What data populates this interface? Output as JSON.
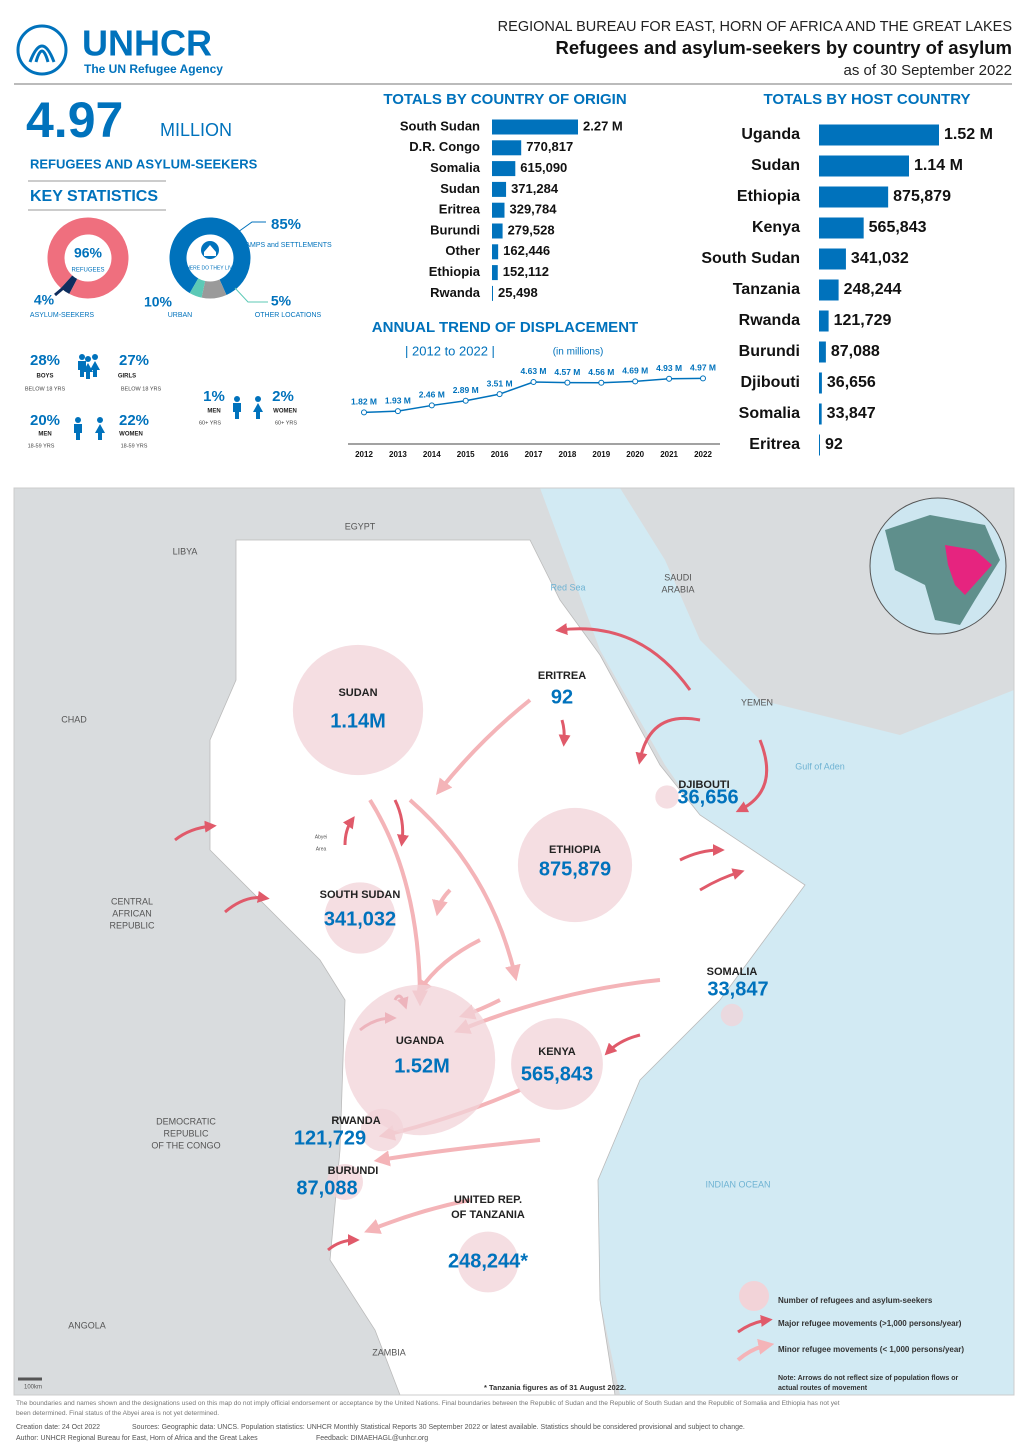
{
  "header": {
    "logo": "UNHCR",
    "logo_tagline": "The UN Refugee Agency",
    "bureau": "REGIONAL BUREAU FOR EAST, HORN OF AFRICA AND THE GREAT LAKES",
    "title": "Refugees and asylum-seekers by country of asylum",
    "date": "as of 30 September 2022"
  },
  "key_statistics": {
    "total": {
      "value": 4.97,
      "unit": "MILLION",
      "caption": "REFUGEES AND ASYLUM-SEEKERS"
    },
    "heading": "KEY STATISTICS",
    "demographics": [
      {
        "value": 28,
        "label": "28%",
        "group": "BOYS",
        "age": "BELOW 18 YRS"
      },
      {
        "value": 27,
        "label": "27%",
        "group": "GIRLS",
        "age": "BELOW 18 YRS"
      },
      {
        "value": 20,
        "label": "20%",
        "group": "MEN",
        "age": "18-59 YRS"
      },
      {
        "value": 22,
        "label": "22%",
        "group": "WOMEN",
        "age": "18-59 YRS"
      },
      {
        "value": 1,
        "label": "1%",
        "group": "MEN",
        "age": "60+ YRS"
      },
      {
        "value": 2,
        "label": "2%",
        "group": "WOMEN",
        "age": "60+ YRS"
      }
    ]
  },
  "chart_data": [
    {
      "type": "pie",
      "categories": [
        "REFUGEES",
        "ASYLUM-SEEKERS"
      ],
      "values": [
        96,
        4
      ],
      "value_labels": [
        "96%",
        "4%"
      ],
      "colors": [
        "#ef6f7e",
        "#0e2d5e"
      ]
    },
    {
      "type": "pie",
      "center_label": "WHERE DO THEY LIVE?",
      "categories": [
        "CAMPS and SETTLEMENTS",
        "URBAN",
        "OTHER LOCATIONS"
      ],
      "values": [
        85,
        10,
        5
      ],
      "value_labels": [
        "85%",
        "10%",
        "5%"
      ],
      "colors": [
        "#0072bc",
        "#9a9a9a",
        "#5cc9b6"
      ]
    },
    {
      "type": "bar",
      "title": "TOTALS BY COUNTRY OF ORIGIN",
      "categories": [
        "South Sudan",
        "D.R. Congo",
        "Somalia",
        "Sudan",
        "Eritrea",
        "Burundi",
        "Other",
        "Ethiopia",
        "Rwanda"
      ],
      "values": [
        2270000,
        770817,
        615090,
        371284,
        329784,
        279528,
        162446,
        152112,
        25498
      ],
      "value_labels": [
        "2.27 M",
        "770,817",
        "615,090",
        "371,284",
        "329,784",
        "279,528",
        "162,446",
        "152,112",
        "25,498"
      ],
      "color": "#0072bc"
    },
    {
      "type": "line",
      "title": "ANNUAL TREND OF DISPLACEMENT",
      "subtitle": "| 2012 to 2022 |",
      "unit_note": "(in millions)",
      "categories": [
        "2012",
        "2013",
        "2014",
        "2015",
        "2016",
        "2017",
        "2018",
        "2019",
        "2020",
        "2021",
        "2022"
      ],
      "values": [
        1.82,
        1.93,
        2.46,
        2.89,
        3.51,
        4.63,
        4.57,
        4.56,
        4.69,
        4.93,
        4.97
      ],
      "value_labels": [
        "1.82 M",
        "1.93 M",
        "2.46 M",
        "2.89 M",
        "3.51 M",
        "4.63 M",
        "4.57 M",
        "4.56 M",
        "4.69 M",
        "4.93 M",
        "4.97 M"
      ],
      "color": "#0072bc"
    },
    {
      "type": "bar",
      "title": "TOTALS BY HOST COUNTRY",
      "categories": [
        "Uganda",
        "Sudan",
        "Ethiopia",
        "Kenya",
        "South Sudan",
        "Tanzania",
        "Rwanda",
        "Burundi",
        "Djibouti",
        "Somalia",
        "Eritrea"
      ],
      "values": [
        1520000,
        1140000,
        875879,
        565843,
        341032,
        248244,
        121729,
        87088,
        36656,
        33847,
        92
      ],
      "value_labels": [
        "1.52 M",
        "1.14 M",
        "875,879",
        "565,843",
        "341,032",
        "248,244",
        "121,729",
        "87,088",
        "36,656",
        "33,847",
        "92"
      ],
      "color": "#0072bc"
    }
  ],
  "map": {
    "hosts": [
      {
        "name": [
          "SUDAN"
        ],
        "value": 1140000,
        "label": "1.14M"
      },
      {
        "name": [
          "ERITREA"
        ],
        "value": 92,
        "label": "92"
      },
      {
        "name": [
          "DJIBOUTI"
        ],
        "value": 36656,
        "label": "36,656"
      },
      {
        "name": [
          "ETHIOPIA"
        ],
        "value": 875879,
        "label": "875,879"
      },
      {
        "name": [
          "SOUTH SUDAN"
        ],
        "value": 341032,
        "label": "341,032"
      },
      {
        "name": [
          "SOMALIA"
        ],
        "value": 33847,
        "label": "33,847"
      },
      {
        "name": [
          "UGANDA"
        ],
        "value": 1520000,
        "label": "1.52M"
      },
      {
        "name": [
          "KENYA"
        ],
        "value": 565843,
        "label": "565,843"
      },
      {
        "name": [
          "RWANDA"
        ],
        "value": 121729,
        "label": "121,729"
      },
      {
        "name": [
          "BURUNDI"
        ],
        "value": 87088,
        "label": "87,088"
      },
      {
        "name": [
          "UNITED REP.",
          "OF TANZANIA"
        ],
        "value": 248244,
        "label": "248,244*"
      }
    ],
    "countries": [
      {
        "lines": [
          "EGYPT"
        ]
      },
      {
        "lines": [
          "LIBYA"
        ]
      },
      {
        "lines": [
          "CHAD"
        ]
      },
      {
        "lines": [
          "SAUDI",
          "ARABIA"
        ]
      },
      {
        "lines": [
          "YEMEN"
        ]
      },
      {
        "lines": [
          "CENTRAL",
          "AFRICAN",
          "REPUBLIC"
        ]
      },
      {
        "lines": [
          "DEMOCRATIC",
          "REPUBLIC",
          "OF THE CONGO"
        ]
      },
      {
        "lines": [
          "ANGOLA"
        ]
      },
      {
        "lines": [
          "ZAMBIA"
        ]
      },
      {
        "lines": [
          "Abyei",
          "Area"
        ]
      }
    ],
    "water": [
      "Red Sea",
      "Gulf of Aden",
      "INDIAN OCEAN"
    ],
    "legend": {
      "circle": "Number of refugees and asylum-seekers",
      "major": "Major refugee movements (>1,000 persons/year)",
      "minor": "Minor refugee movements (< 1,000 persons/year)",
      "note": [
        "Note: Arrows do not reflect size of population flows or",
        "actual routes of movement"
      ]
    },
    "scale": "100km",
    "footnote": "* Tanzania figures as of 31 August 2022."
  },
  "footer": {
    "disclaimer": [
      "The boundaries and names shown and the designations used on this map do not imply official endorsement or acceptance by the United Nations. Final boundaries between the Republic of Sudan and the Republic of South Sudan and the Republic of Somalia and Ethiopia has not yet",
      "been determined. Final status of the Abyei area is not yet determined."
    ],
    "creation": "Creation date: 24 Oct 2022",
    "sources": "Sources: Geographic data: UNCS. Population statistics: UNHCR Monthly Statistical Reports 30 September 2022 or latest available. Statistics should be considered provisional and subject to change.",
    "author": "Author: UNHCR Regional Bureau for East, Horn of Africa and the Great Lakes",
    "feedback": "Feedback: DIMAEHAGL@unhcr.org"
  }
}
